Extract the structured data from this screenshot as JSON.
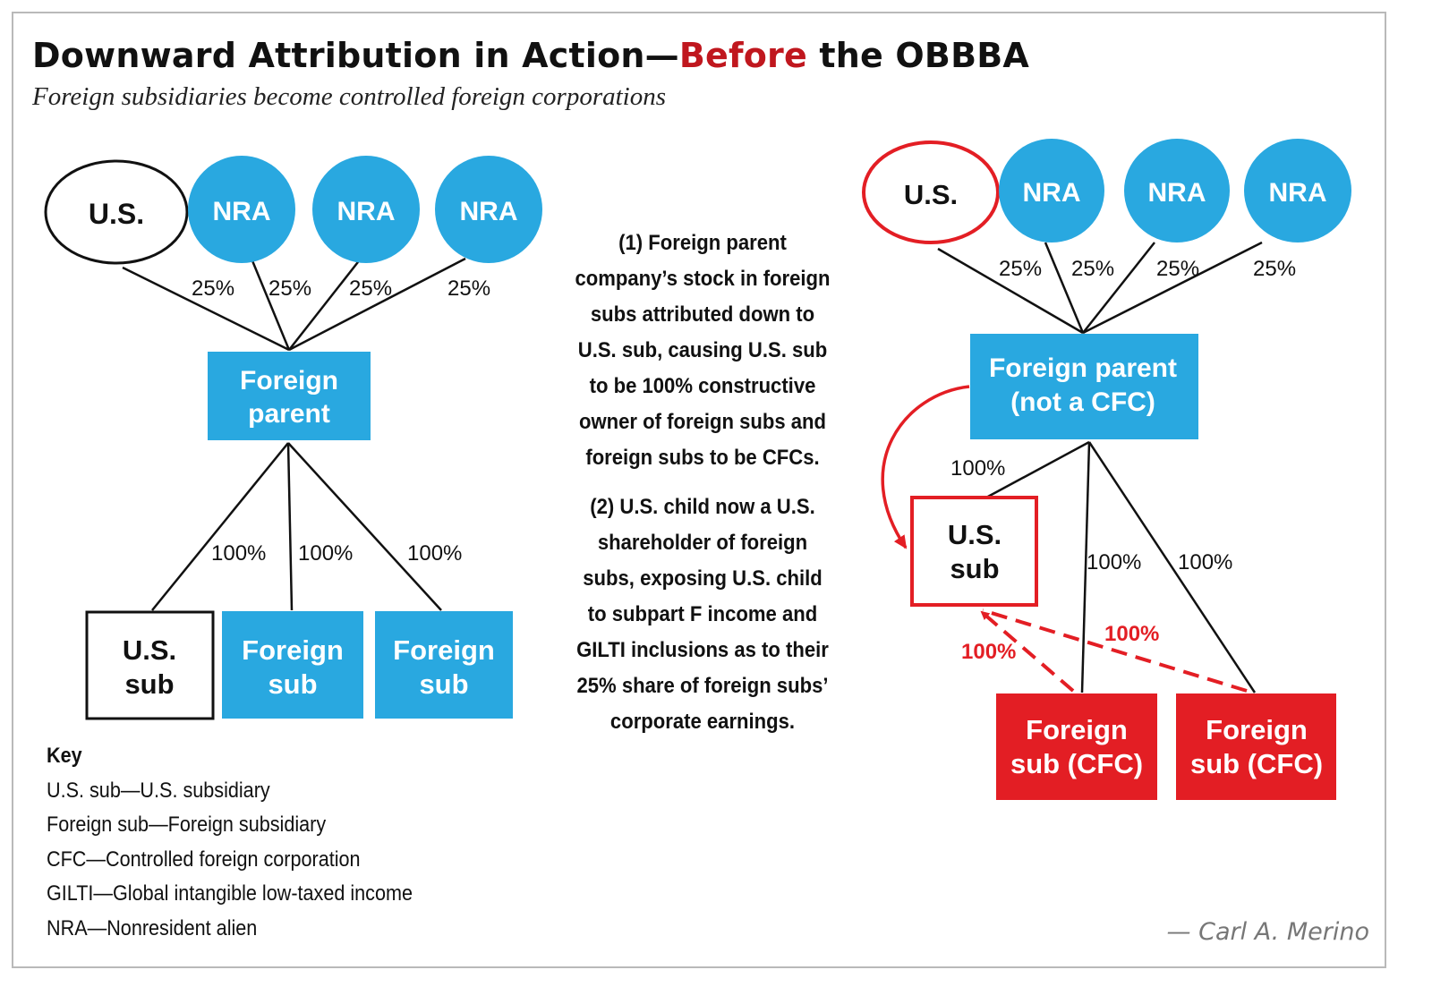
{
  "header": {
    "title_part1": "Downward Attribution in Action—",
    "title_highlight": "Before",
    "title_part2": " the OBBBA",
    "subtitle": "Foreign subsidiaries become controlled foreign corporations"
  },
  "colors": {
    "blue": "#29a8e0",
    "red": "#e31e24",
    "title_red": "#c0171e",
    "black": "#111111"
  },
  "left_diagram": {
    "owners": [
      {
        "label": "U.S.",
        "type": "us"
      },
      {
        "label": "NRA",
        "type": "nra"
      },
      {
        "label": "NRA",
        "type": "nra"
      },
      {
        "label": "NRA",
        "type": "nra"
      }
    ],
    "owner_percentages": [
      "25%",
      "25%",
      "25%",
      "25%"
    ],
    "parent": {
      "line1": "Foreign",
      "line2": "parent"
    },
    "sub_percentages": [
      "100%",
      "100%",
      "100%"
    ],
    "subs": [
      {
        "line1": "U.S.",
        "line2": "sub",
        "type": "us"
      },
      {
        "line1": "Foreign",
        "line2": "sub",
        "type": "foreign"
      },
      {
        "line1": "Foreign",
        "line2": "sub",
        "type": "foreign"
      }
    ]
  },
  "explanation": {
    "point1": "(1) Foreign parent company’s stock in foreign subs attributed down to U.S. sub, causing U.S. sub to be 100% constructive owner of foreign subs and foreign subs to be CFCs.",
    "point2": "(2) U.S. child now a U.S. shareholder of foreign subs, exposing U.S. child to subpart F income and GILTI inclusions as to their 25% share of foreign subs’ corporate earnings."
  },
  "right_diagram": {
    "owners": [
      {
        "label": "U.S.",
        "type": "us"
      },
      {
        "label": "NRA",
        "type": "nra"
      },
      {
        "label": "NRA",
        "type": "nra"
      },
      {
        "label": "NRA",
        "type": "nra"
      }
    ],
    "owner_percentages": [
      "25%",
      "25%",
      "25%",
      "25%"
    ],
    "parent": {
      "line1": "Foreign parent",
      "line2": "(not a CFC)"
    },
    "us_sub": {
      "line1": "U.S.",
      "line2": "sub"
    },
    "us_sub_percentage": "100%",
    "sub_percentages": [
      "100%",
      "100%"
    ],
    "attributed_percentages": [
      "100%",
      "100%"
    ],
    "cfc_subs": [
      {
        "line1": "Foreign",
        "line2": "sub (CFC)"
      },
      {
        "line1": "Foreign",
        "line2": "sub (CFC)"
      }
    ]
  },
  "key": {
    "title": "Key",
    "items": [
      "U.S. sub—U.S. subsidiary",
      "Foreign sub—Foreign subsidiary",
      "CFC—Controlled foreign corporation",
      "GILTI—Global intangible low-taxed income",
      "NRA—Nonresident alien"
    ]
  },
  "credit": "— Carl A. Merino"
}
